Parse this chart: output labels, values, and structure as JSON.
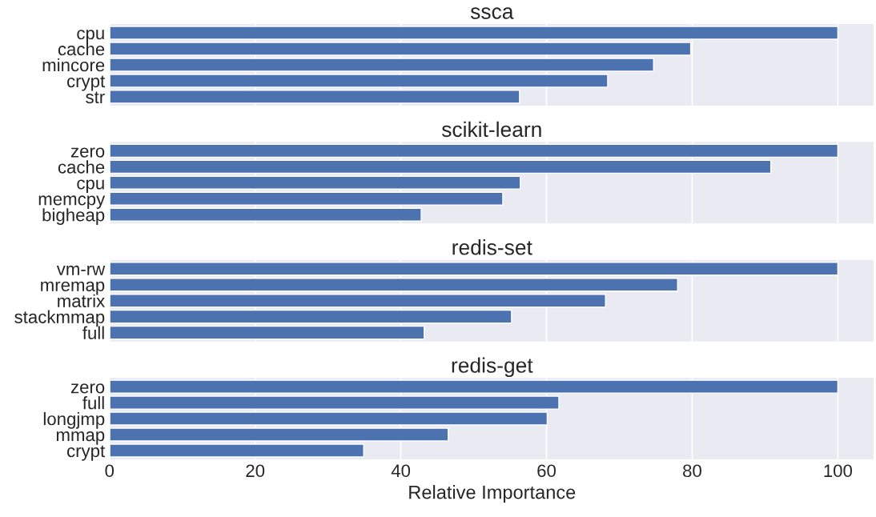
{
  "chart_data": [
    {
      "type": "bar",
      "orientation": "horizontal",
      "title": "ssca",
      "categories": [
        "cpu",
        "cache",
        "mincore",
        "crypt",
        "str"
      ],
      "values": [
        100,
        79.8,
        74.7,
        68.4,
        56.3
      ],
      "color": "#4c72b0",
      "xlim": [
        0,
        105
      ],
      "xticks": [
        0,
        20,
        40,
        60,
        80,
        100
      ],
      "grid": "x",
      "tick_labels": "y"
    },
    {
      "type": "bar",
      "orientation": "horizontal",
      "title": "scikit-learn",
      "categories": [
        "zero",
        "cache",
        "cpu",
        "memcpy",
        "bigheap"
      ],
      "values": [
        100,
        90.8,
        56.4,
        54.0,
        42.8
      ],
      "color": "#4c72b0",
      "xlim": [
        0,
        105
      ],
      "xticks": [
        0,
        20,
        40,
        60,
        80,
        100
      ],
      "grid": "x",
      "tick_labels": "y"
    },
    {
      "type": "bar",
      "orientation": "horizontal",
      "title": "redis-set",
      "categories": [
        "vm-rw",
        "mremap",
        "matrix",
        "stackmmap",
        "full"
      ],
      "values": [
        100,
        78.0,
        68.1,
        55.2,
        43.2
      ],
      "color": "#4c72b0",
      "xlim": [
        0,
        105
      ],
      "xticks": [
        0,
        20,
        40,
        60,
        80,
        100
      ],
      "grid": "x",
      "tick_labels": "y"
    },
    {
      "type": "bar",
      "orientation": "horizontal",
      "title": "redis-get",
      "xlabel": "Relative Importance",
      "categories": [
        "zero",
        "full",
        "longjmp",
        "mmap",
        "crypt"
      ],
      "values": [
        100,
        61.7,
        60.1,
        46.5,
        34.9
      ],
      "color": "#4c72b0",
      "xlim": [
        0,
        105
      ],
      "xticks": [
        0,
        20,
        40,
        60,
        80,
        100
      ],
      "grid": "x"
    }
  ]
}
